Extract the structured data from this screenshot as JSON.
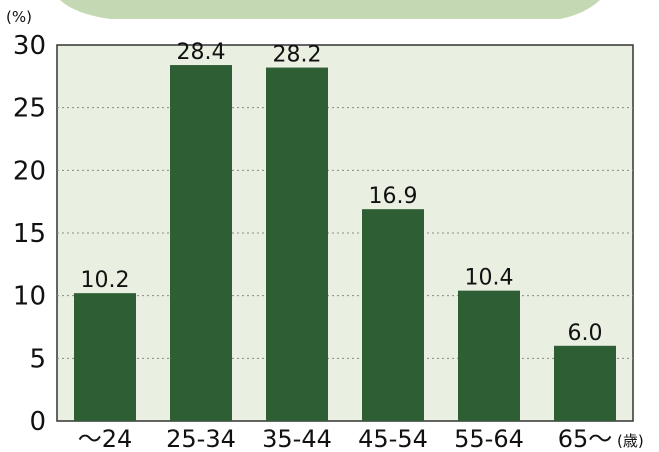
{
  "chart_data": {
    "type": "bar",
    "y_unit": "(%)",
    "x_unit": "(歳)",
    "categories": [
      "～24",
      "25-34",
      "35-44",
      "45-54",
      "55-64",
      "65～"
    ],
    "values": [
      10.2,
      28.4,
      28.2,
      16.9,
      10.4,
      6.0
    ],
    "value_labels": [
      "10.2",
      "28.4",
      "28.2",
      "16.9",
      "10.4",
      "6.0"
    ],
    "ylim": [
      0,
      30
    ],
    "yticks": [
      0,
      5,
      10,
      15,
      20,
      25,
      30
    ],
    "grid": true,
    "legend": "none",
    "colors": {
      "bar": "#2e5e34",
      "plot_background": "#e9efe1",
      "header_band": "#c4d8b4",
      "grid": "#8a8a8a"
    }
  }
}
